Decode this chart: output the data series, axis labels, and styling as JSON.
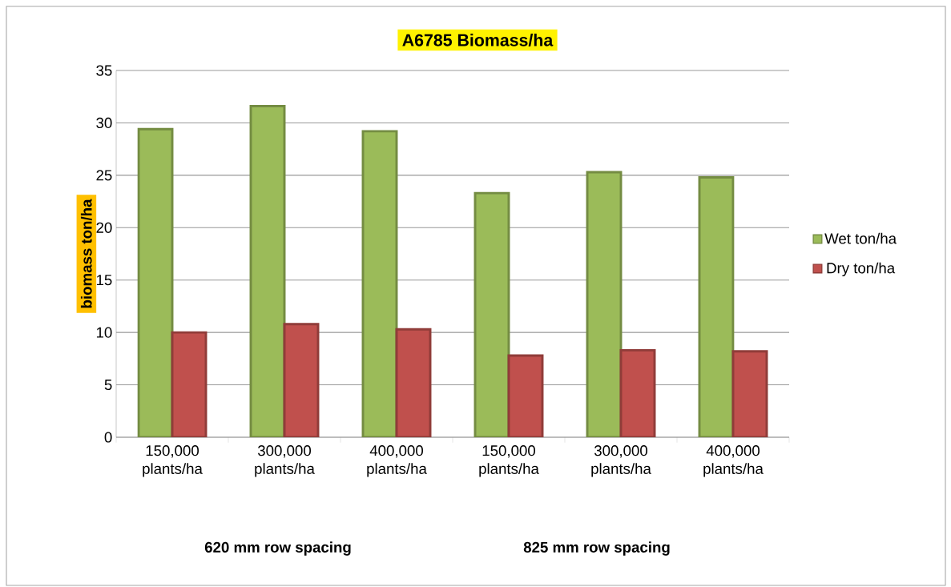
{
  "chart_data": {
    "type": "bar",
    "title": "A6785 Biomass/ha",
    "ylabel": "biomass ton/ha",
    "categories": [
      "150,000 plants/ha",
      "300,000 plants/ha",
      "400,000 plants/ha",
      "150,000 plants/ha",
      "300,000 plants/ha",
      "400,000 plants/ha"
    ],
    "series": [
      {
        "name": "Wet ton/ha",
        "color": "#9bbb59",
        "values": [
          29.4,
          31.6,
          29.2,
          23.3,
          25.3,
          24.8
        ]
      },
      {
        "name": "Dry ton/ha",
        "color": "#c0504d",
        "values": [
          10.0,
          10.8,
          10.3,
          7.8,
          8.3,
          8.2
        ]
      }
    ],
    "ylim": [
      0,
      35
    ],
    "yticks": [
      0,
      5,
      10,
      15,
      20,
      25,
      30,
      35
    ],
    "grid": "y",
    "legend": "right",
    "annotations": [
      "620 mm row spacing",
      "825 mm row spacing"
    ]
  }
}
